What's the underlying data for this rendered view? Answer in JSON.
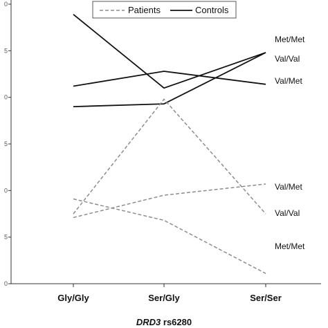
{
  "chart_data": {
    "type": "line",
    "categories": [
      "Gly/Gly",
      "Ser/Gly",
      "Ser/Ser"
    ],
    "x_title": {
      "gene": "DRD3",
      "variant": " rs6280"
    },
    "ytick_labels": [
      "0",
      "5",
      "0",
      "5",
      "0",
      "5",
      "0"
    ],
    "ylim": [
      0,
      30
    ],
    "grid": false,
    "legend": {
      "placement": "top-center",
      "entries": [
        {
          "label": "Patients",
          "style": "dashed",
          "color": "#8c8c8c"
        },
        {
          "label": "Controls",
          "style": "solid",
          "color": "#111111"
        }
      ]
    },
    "series": [
      {
        "group": "Controls",
        "genotype": "Met/Met",
        "values": [
          28.9,
          21.0,
          24.8
        ]
      },
      {
        "group": "Controls",
        "genotype": "Val/Val",
        "values": [
          21.2,
          22.8,
          21.4
        ]
      },
      {
        "group": "Controls",
        "genotype": "Val/Met",
        "values": [
          19.0,
          19.3,
          24.8
        ]
      },
      {
        "group": "Patients",
        "genotype": "Met/Met",
        "values": [
          9.1,
          6.8,
          1.1
        ]
      },
      {
        "group": "Patients",
        "genotype": "Val/Val",
        "values": [
          7.5,
          19.8,
          7.5
        ]
      },
      {
        "group": "Patients",
        "genotype": "Val/Met",
        "values": [
          7.1,
          9.5,
          10.7
        ]
      }
    ],
    "annotations": {
      "controls": [
        "Met/Met",
        "Val/Val",
        "Val/Met"
      ],
      "patients": [
        "Val/Met",
        "Val/Val",
        "Met/Met"
      ]
    },
    "colors": {
      "controls": "#111111",
      "patients": "#8c8c8c",
      "axis": "#333333"
    }
  }
}
